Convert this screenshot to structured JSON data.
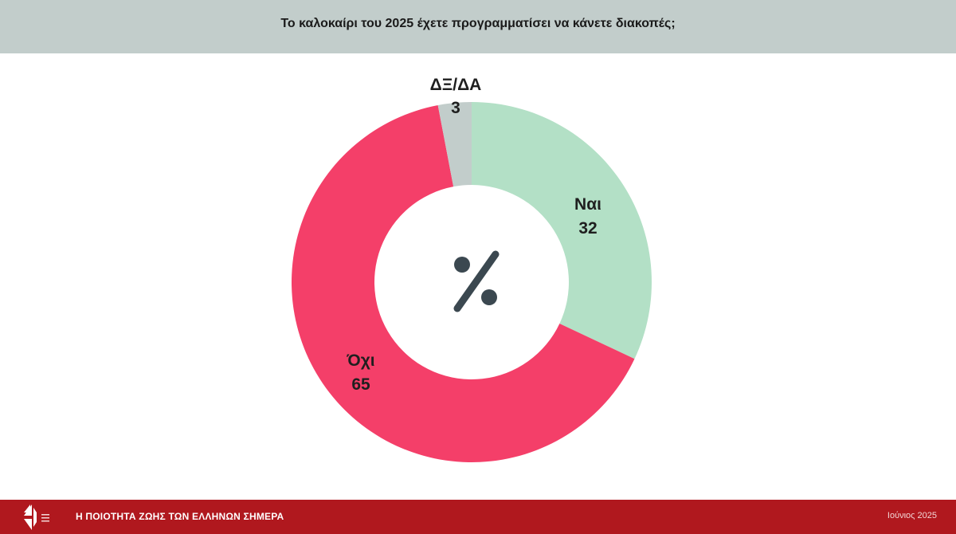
{
  "header": {
    "title": "Το καλοκαίρι του 2025 έχετε προγραμματίσει να κάνετε διακοπές;"
  },
  "chart_data": {
    "type": "pie",
    "center_symbol": "%",
    "categories": [
      "Ναι",
      "Όχι",
      "ΔΞ/ΔΑ"
    ],
    "values": [
      32,
      65,
      3
    ],
    "colors": [
      "#b3e0c6",
      "#f43f69",
      "#c2cdcb"
    ]
  },
  "footer": {
    "title": "Η ΠΟΙΟΤΗΤΑ ΖΩΗΣ ΤΩΝ ΕΛΛΗΝΩΝ ΣΗΜΕΡΑ",
    "date": "Ιούνιος 2025",
    "logo_icon": "brand-logo-icon"
  }
}
